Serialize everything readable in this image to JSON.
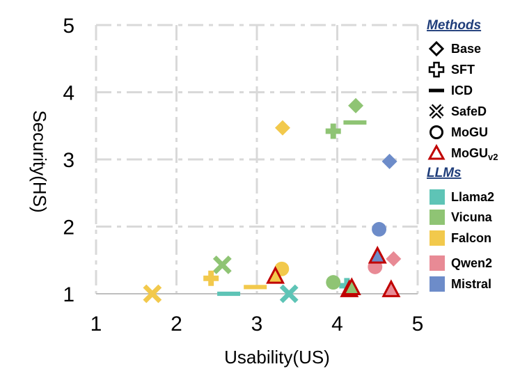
{
  "chart_data": {
    "type": "scatter",
    "title": "",
    "xlabel": "Usability(US)",
    "ylabel": "Security(HS)",
    "xlim": [
      1,
      5
    ],
    "ylim": [
      1,
      5
    ],
    "xticks": [
      "1",
      "2",
      "3",
      "4",
      "5"
    ],
    "yticks": [
      "1",
      "2",
      "3",
      "4",
      "5"
    ],
    "grid": true,
    "legend": {
      "position": "right",
      "methods_title": "Methods",
      "methods": [
        {
          "key": "base",
          "label": "Base",
          "marker": "diamond"
        },
        {
          "key": "sft",
          "label": "SFT",
          "marker": "plus"
        },
        {
          "key": "icd",
          "label": "ICD",
          "marker": "dash"
        },
        {
          "key": "safed",
          "label": "SafeD",
          "marker": "cross"
        },
        {
          "key": "mogu",
          "label": "MoGU",
          "marker": "circle"
        },
        {
          "key": "moguv2",
          "label": "MoGU",
          "label_sub": "v2",
          "marker": "triangle"
        }
      ],
      "llms_title": "LLMs",
      "llms": [
        {
          "key": "llama2",
          "label": "Llama2",
          "color": "#5ec4b6"
        },
        {
          "key": "vicuna",
          "label": "Vicuna",
          "color": "#8fc474"
        },
        {
          "key": "falcon",
          "label": "Falcon",
          "color": "#f2c94c"
        },
        {
          "key": "qwen2",
          "label": "Qwen2",
          "color": "#e88a95"
        },
        {
          "key": "mistral",
          "label": "Mistral",
          "color": "#6d8cc9"
        }
      ]
    },
    "points": [
      {
        "llm": "llama2",
        "method": "sft",
        "x": 4.12,
        "y": 1.12
      },
      {
        "llm": "llama2",
        "method": "icd",
        "x": 2.65,
        "y": 1.0
      },
      {
        "llm": "llama2",
        "method": "safed",
        "x": 3.4,
        "y": 1.0
      },
      {
        "llm": "llama2",
        "method": "moguv2",
        "x": 4.15,
        "y": 1.05
      },
      {
        "llm": "vicuna",
        "method": "base",
        "x": 4.23,
        "y": 3.8
      },
      {
        "llm": "vicuna",
        "method": "sft",
        "x": 3.95,
        "y": 3.42
      },
      {
        "llm": "vicuna",
        "method": "icd",
        "x": 4.22,
        "y": 3.55
      },
      {
        "llm": "vicuna",
        "method": "safed",
        "x": 2.57,
        "y": 1.43
      },
      {
        "llm": "vicuna",
        "method": "mogu",
        "x": 3.95,
        "y": 1.17
      },
      {
        "llm": "vicuna",
        "method": "moguv2",
        "x": 4.18,
        "y": 1.08
      },
      {
        "llm": "falcon",
        "method": "base",
        "x": 3.32,
        "y": 3.47
      },
      {
        "llm": "falcon",
        "method": "sft",
        "x": 2.43,
        "y": 1.23
      },
      {
        "llm": "falcon",
        "method": "icd",
        "x": 2.98,
        "y": 1.1
      },
      {
        "llm": "falcon",
        "method": "safed",
        "x": 1.7,
        "y": 1.0
      },
      {
        "llm": "falcon",
        "method": "mogu",
        "x": 3.31,
        "y": 1.37
      },
      {
        "llm": "falcon",
        "method": "moguv2",
        "x": 3.23,
        "y": 1.25
      },
      {
        "llm": "qwen2",
        "method": "base",
        "x": 4.7,
        "y": 1.52
      },
      {
        "llm": "qwen2",
        "method": "mogu",
        "x": 4.47,
        "y": 1.4
      },
      {
        "llm": "qwen2",
        "method": "moguv2",
        "x": 4.67,
        "y": 1.05
      },
      {
        "llm": "mistral",
        "method": "base",
        "x": 4.65,
        "y": 2.97
      },
      {
        "llm": "mistral",
        "method": "mogu",
        "x": 4.52,
        "y": 1.96
      },
      {
        "llm": "mistral",
        "method": "moguv2",
        "x": 4.5,
        "y": 1.55
      }
    ]
  }
}
